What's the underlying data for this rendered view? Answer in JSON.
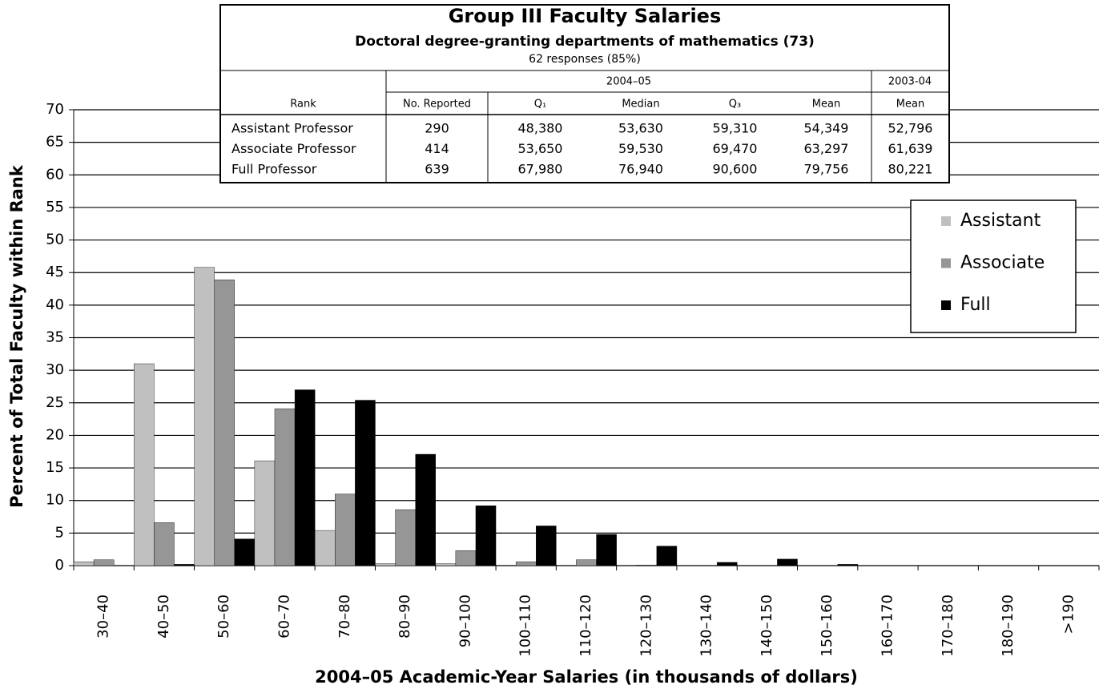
{
  "chart_data": {
    "type": "bar",
    "y_label": "Percent of Total Faculty within Rank",
    "x_label": "2004–05 Academic-Year Salaries (in thousands of dollars)",
    "categories": [
      "30–40",
      "40–50",
      "50–60",
      "60–70",
      "70–80",
      "80–90",
      "90–100",
      "100–110",
      "110–120",
      "120–130",
      "130–140",
      "140–150",
      "150–160",
      "160–170",
      "170–180",
      "180–190",
      ">190"
    ],
    "series": [
      {
        "name": "Assistant",
        "color": "#c0c0c0",
        "values": [
          0.6,
          31,
          45.8,
          16.1,
          5.4,
          0.3,
          0.3,
          0,
          0,
          0,
          0,
          0,
          0,
          0,
          0,
          0,
          0
        ]
      },
      {
        "name": "Associate",
        "color": "#969696",
        "values": [
          0.9,
          6.6,
          43.9,
          24.1,
          11,
          8.6,
          2.3,
          0.6,
          0.9,
          0.1,
          0,
          0,
          0,
          0,
          0,
          0,
          0
        ]
      },
      {
        "name": "Full",
        "color": "#000000",
        "values": [
          0,
          0.2,
          4.1,
          27,
          25.4,
          17.1,
          9.2,
          6.1,
          4.8,
          3,
          0.5,
          1,
          0.2,
          0,
          0,
          0,
          0
        ]
      }
    ],
    "ylim": [
      0,
      70
    ],
    "yticks": [
      0,
      5,
      10,
      15,
      20,
      25,
      30,
      35,
      40,
      45,
      50,
      55,
      60,
      65,
      70
    ],
    "grid": true,
    "legend": "right"
  },
  "table": {
    "title": "Group III Faculty Salaries",
    "subtitle": "Doctoral degree-granting departments of mathematics (73)",
    "note": "62 responses (85%)",
    "group_header": [
      "2004–05",
      "2003-04"
    ],
    "columns": [
      "Rank",
      "No. Reported",
      "Q₁",
      "Median",
      "Q₃",
      "Mean",
      "Mean"
    ],
    "rows": [
      [
        "Assistant Professor",
        "290",
        "48,380",
        "53,630",
        "59,310",
        "54,349",
        "52,796"
      ],
      [
        "Associate Professor",
        "414",
        "53,650",
        "59,530",
        "69,470",
        "63,297",
        "61,639"
      ],
      [
        "Full Professor",
        "639",
        "67,980",
        "76,940",
        "90,600",
        "79,756",
        "80,221"
      ]
    ]
  }
}
